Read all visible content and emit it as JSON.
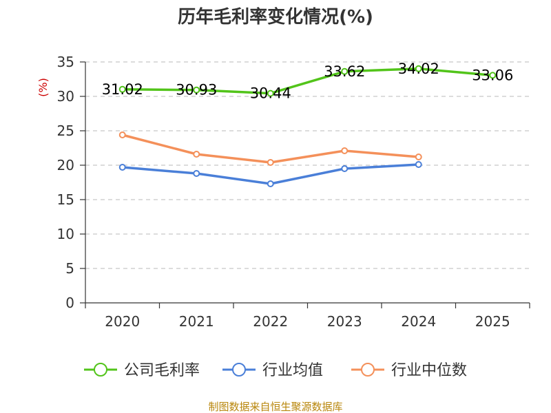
{
  "chart_data": {
    "type": "line",
    "title": "历年毛利率变化情况(%)",
    "ylabel": "(%)",
    "xlabel": "",
    "categories": [
      "2020",
      "2021",
      "2022",
      "2023",
      "2024",
      "2025"
    ],
    "ylim": [
      0,
      35
    ],
    "yticks": [
      0,
      5,
      10,
      15,
      20,
      25,
      30,
      35
    ],
    "grid": true,
    "legend_position": "bottom-center",
    "series": [
      {
        "name": "公司毛利率",
        "color": "#52c41a",
        "values": [
          31.02,
          30.93,
          30.44,
          33.62,
          34.02,
          33.06
        ],
        "labels": [
          "31.02",
          "30.93",
          "30.44",
          "33.62",
          "34.02",
          "33.06"
        ]
      },
      {
        "name": "行业均值",
        "color": "#4a7fd8",
        "values": [
          19.7,
          18.8,
          17.3,
          19.5,
          20.1,
          null
        ]
      },
      {
        "name": "行业中位数",
        "color": "#f4905a",
        "values": [
          24.4,
          21.6,
          20.4,
          22.1,
          21.2,
          null
        ]
      }
    ]
  },
  "source": "制图数据来自恒生聚源数据库"
}
